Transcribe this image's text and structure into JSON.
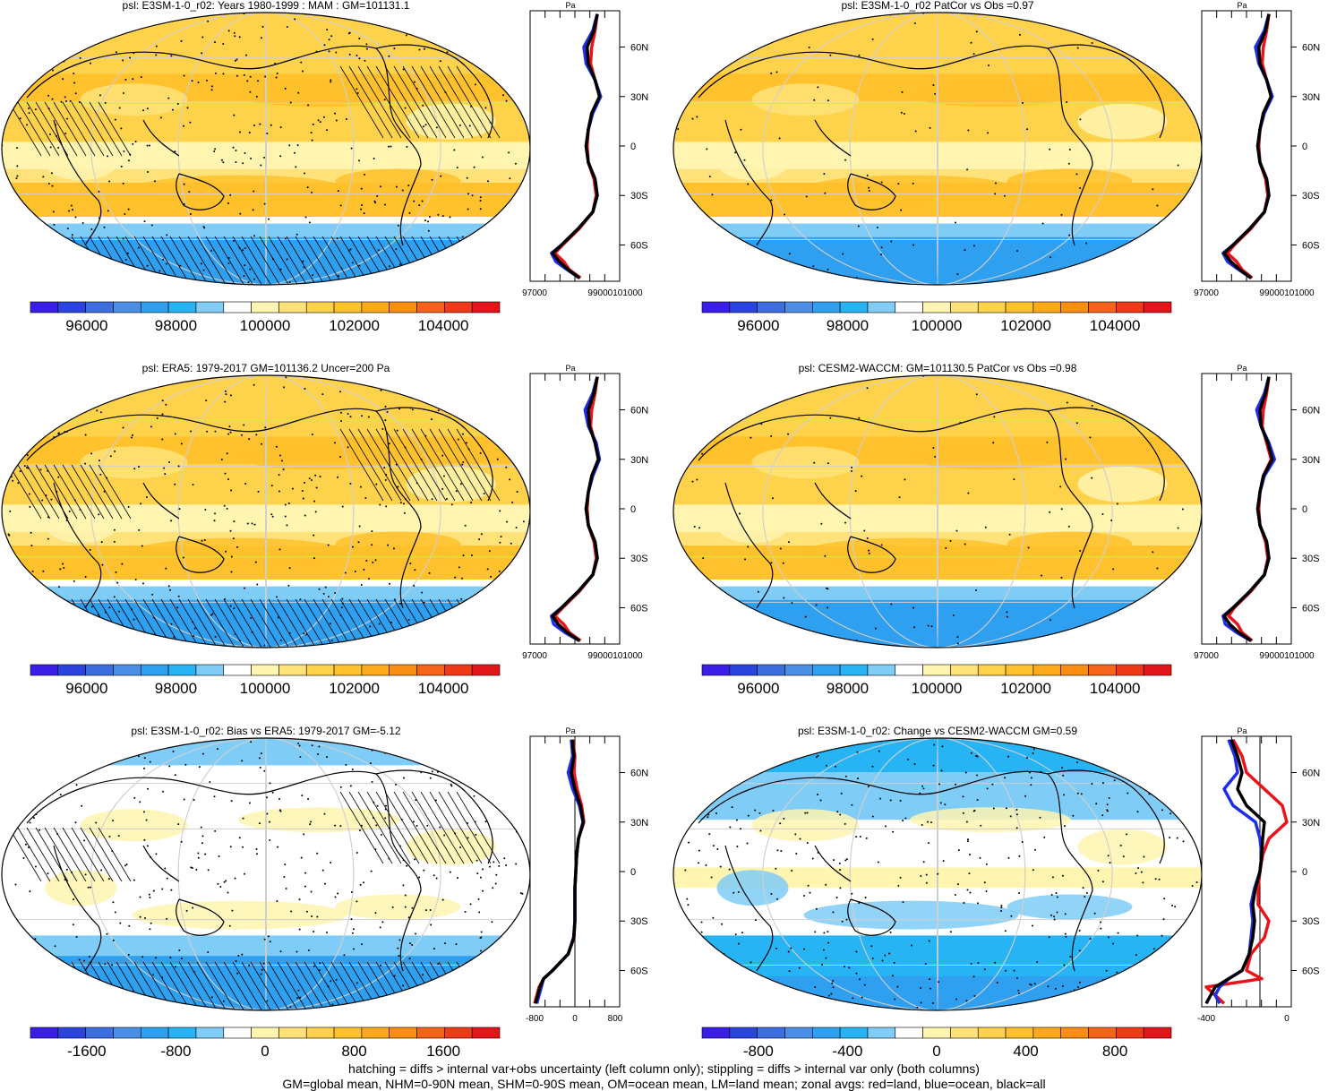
{
  "palettes": {
    "abs": [
      "#3a1ee8",
      "#2b44e0",
      "#3c6ee0",
      "#4a8ee6",
      "#2f9ff0",
      "#27b4f4",
      "#7fcdf6",
      "#ffffff",
      "#fff5b0",
      "#ffe37a",
      "#ffd24b",
      "#ffc12c",
      "#fcaa1a",
      "#fa8e12",
      "#f5641a",
      "#ef3a18",
      "#e2161a"
    ],
    "bias": [
      "#3a1ee8",
      "#2b44e0",
      "#3c6ee0",
      "#4a8ee6",
      "#2f9ff0",
      "#27b4f4",
      "#7fcdf6",
      "#ffffff",
      "#fff5b0",
      "#ffe37a",
      "#ffd24b",
      "#ffc12c",
      "#fcaa1a",
      "#fa8e12",
      "#f5641a",
      "#ef3a18",
      "#e2161a"
    ]
  },
  "zonal_colors": {
    "land": "#e8141a",
    "ocean": "#1e2ee8",
    "all": "#000000"
  },
  "lat_labels": [
    "60N",
    "30N",
    "0",
    "30S",
    "60S"
  ],
  "panels": [
    {
      "title": "psl: E3SM-1-0_r02: Years 1980-1999 : MAM : GM=101131.1",
      "palette": "abs",
      "colorbar_labels": [
        "96000",
        "98000",
        "100000",
        "102000",
        "104000"
      ],
      "zonal_unit": "Pa",
      "zonal_tick_labels": [
        "97000",
        "99000101000"
      ],
      "chart_data": {
        "type": "line",
        "xlim": [
          96000,
          104000
        ],
        "series": [
          {
            "name": "land",
            "lat": [
              80,
              70,
              60,
              50,
              40,
              30,
              20,
              10,
              0,
              -10,
              -20,
              -30,
              -40,
              -50,
              -60,
              -65,
              -70,
              -75,
              -80
            ],
            "values": [
              102000,
              101800,
              101500,
              101400,
              101800,
              102200,
              101500,
              101200,
              101100,
              101200,
              101700,
              101900,
              101600,
              100400,
              98900,
              98200,
              99000,
              99500,
              100500
            ]
          },
          {
            "name": "ocean",
            "lat": [
              80,
              70,
              60,
              50,
              40,
              30,
              20,
              10,
              0,
              -10,
              -20,
              -30,
              -40,
              -50,
              -60,
              -65,
              -70,
              -75,
              -80
            ],
            "values": [
              102000,
              101600,
              100800,
              101000,
              101800,
              102300,
              101600,
              101200,
              101000,
              101200,
              101800,
              102000,
              101600,
              100300,
              98800,
              97900,
              98300,
              99300,
              100400
            ]
          },
          {
            "name": "all",
            "lat": [
              80,
              70,
              60,
              50,
              40,
              30,
              20,
              10,
              0,
              -10,
              -20,
              -30,
              -40,
              -50,
              -60,
              -65,
              -70,
              -75,
              -80
            ],
            "values": [
              102000,
              101700,
              101100,
              101200,
              101800,
              102200,
              101500,
              101200,
              101000,
              101200,
              101800,
              102000,
              101600,
              100300,
              98800,
              98000,
              98600,
              99400,
              100400
            ]
          }
        ]
      }
    },
    {
      "title": "psl: E3SM-1-0_r02 PatCor vs Obs =0.97",
      "palette": "abs",
      "colorbar_labels": [
        "96000",
        "98000",
        "100000",
        "102000",
        "104000"
      ],
      "zonal_unit": "Pa",
      "zonal_tick_labels": [
        "97000",
        "99000101000"
      ],
      "chart_data": {
        "type": "line",
        "xlim": [
          96000,
          104000
        ],
        "series": [
          {
            "name": "land",
            "lat": [
              80,
              70,
              60,
              50,
              40,
              30,
              20,
              10,
              0,
              -10,
              -20,
              -30,
              -40,
              -50,
              -60,
              -65,
              -70,
              -75,
              -80
            ],
            "values": [
              102000,
              101800,
              101500,
              101400,
              101800,
              102200,
              101500,
              101200,
              101100,
              101200,
              101700,
              101900,
              101600,
              100400,
              98900,
              98300,
              99100,
              99600,
              100500
            ]
          },
          {
            "name": "ocean",
            "lat": [
              80,
              70,
              60,
              50,
              40,
              30,
              20,
              10,
              0,
              -10,
              -20,
              -30,
              -40,
              -50,
              -60,
              -65,
              -70,
              -75,
              -80
            ],
            "values": [
              102000,
              101600,
              100800,
              101100,
              101800,
              102300,
              101600,
              101200,
              101000,
              101200,
              101800,
              102000,
              101600,
              100300,
              98800,
              97900,
              98300,
              99300,
              100400
            ]
          },
          {
            "name": "all",
            "lat": [
              80,
              70,
              60,
              50,
              40,
              30,
              20,
              10,
              0,
              -10,
              -20,
              -30,
              -40,
              -50,
              -60,
              -65,
              -70,
              -75,
              -80
            ],
            "values": [
              102000,
              101700,
              101100,
              101200,
              101800,
              102200,
              101500,
              101200,
              101000,
              101200,
              101800,
              102000,
              101600,
              100300,
              98800,
              98000,
              98600,
              99400,
              100400
            ]
          }
        ]
      }
    },
    {
      "title": "psl: ERA5: 1979-2017 GM=101136.2 Uncer=200 Pa",
      "palette": "abs",
      "colorbar_labels": [
        "96000",
        "98000",
        "100000",
        "102000",
        "104000"
      ],
      "zonal_unit": "Pa",
      "zonal_tick_labels": [
        "97000",
        "99000101000"
      ],
      "chart_data": {
        "type": "line",
        "xlim": [
          96000,
          104000
        ],
        "series": [
          {
            "name": "land",
            "lat": [
              80,
              70,
              60,
              50,
              40,
              30,
              20,
              10,
              0,
              -10,
              -20,
              -30,
              -40,
              -50,
              -60,
              -65,
              -70,
              -75,
              -80
            ],
            "values": [
              102000,
              101800,
              101500,
              101400,
              101800,
              102100,
              101500,
              101200,
              101100,
              101200,
              101700,
              101900,
              101600,
              100400,
              98900,
              98200,
              99000,
              99500,
              100500
            ]
          },
          {
            "name": "ocean",
            "lat": [
              80,
              70,
              60,
              50,
              40,
              30,
              20,
              10,
              0,
              -10,
              -20,
              -30,
              -40,
              -50,
              -60,
              -65,
              -70,
              -75,
              -80
            ],
            "values": [
              102000,
              101600,
              100900,
              101200,
              101900,
              102200,
              101600,
              101200,
              101000,
              101200,
              101800,
              102000,
              101600,
              100300,
              98800,
              97900,
              98100,
              99100,
              100400
            ]
          },
          {
            "name": "all",
            "lat": [
              80,
              70,
              60,
              50,
              40,
              30,
              20,
              10,
              0,
              -10,
              -20,
              -30,
              -40,
              -50,
              -60,
              -65,
              -70,
              -75,
              -80
            ],
            "values": [
              102000,
              101700,
              101200,
              101300,
              101800,
              102100,
              101500,
              101200,
              101000,
              101200,
              101800,
              102000,
              101600,
              100300,
              98800,
              98000,
              98500,
              99300,
              100400
            ]
          }
        ]
      }
    },
    {
      "title": "psl: CESM2-WACCM: GM=101130.5 PatCor vs Obs =0.98",
      "palette": "abs",
      "colorbar_labels": [
        "96000",
        "98000",
        "100000",
        "102000",
        "104000"
      ],
      "zonal_unit": "Pa",
      "zonal_tick_labels": [
        "97000",
        "99000101000"
      ],
      "chart_data": {
        "type": "line",
        "xlim": [
          96000,
          104000
        ],
        "series": [
          {
            "name": "land",
            "lat": [
              80,
              70,
              60,
              50,
              40,
              30,
              20,
              10,
              0,
              -10,
              -20,
              -30,
              -40,
              -50,
              -60,
              -65,
              -70,
              -75,
              -80
            ],
            "values": [
              102000,
              101800,
              101500,
              101400,
              101800,
              102200,
              101500,
              101200,
              101100,
              101200,
              101700,
              101900,
              101600,
              100400,
              98900,
              98400,
              99200,
              99600,
              100500
            ]
          },
          {
            "name": "ocean",
            "lat": [
              80,
              70,
              60,
              50,
              40,
              30,
              20,
              10,
              0,
              -10,
              -20,
              -30,
              -40,
              -50,
              -60,
              -65,
              -70,
              -75,
              -80
            ],
            "values": [
              102000,
              101600,
              100900,
              101300,
              102000,
              102500,
              101600,
              101200,
              101000,
              101200,
              101800,
              102000,
              101600,
              100300,
              98800,
              97900,
              98100,
              99100,
              100400
            ]
          },
          {
            "name": "all",
            "lat": [
              80,
              70,
              60,
              50,
              40,
              30,
              20,
              10,
              0,
              -10,
              -20,
              -30,
              -40,
              -50,
              -60,
              -65,
              -70,
              -75,
              -80
            ],
            "values": [
              102000,
              101700,
              101200,
              101300,
              101900,
              102300,
              101500,
              101200,
              101000,
              101200,
              101800,
              102000,
              101600,
              100300,
              98800,
              98000,
              98500,
              99300,
              100400
            ]
          }
        ]
      }
    },
    {
      "title": "psl: E3SM-1-0_r02: Bias vs ERA5: 1979-2017 GM=-5.12",
      "palette": "bias",
      "colorbar_labels": [
        "-1600",
        "-800",
        "0",
        "800",
        "1600"
      ],
      "zonal_unit": "Pa",
      "zonal_tick_labels": [
        "-800",
        "0",
        "800"
      ],
      "chart_data": {
        "type": "line",
        "xlim": [
          -1000,
          1000
        ],
        "series": [
          {
            "name": "land",
            "lat": [
              80,
              70,
              60,
              50,
              40,
              30,
              20,
              10,
              0,
              -10,
              -20,
              -30,
              -40,
              -50,
              -60,
              -65,
              -70,
              -75,
              -80
            ],
            "values": [
              -50,
              0,
              -20,
              50,
              150,
              200,
              80,
              40,
              20,
              0,
              0,
              0,
              -20,
              -150,
              -500,
              -700,
              -800,
              -850,
              -900
            ]
          },
          {
            "name": "ocean",
            "lat": [
              80,
              70,
              60,
              50,
              40,
              30,
              20,
              10,
              0,
              -10,
              -20,
              -30,
              -40,
              -50,
              -60,
              -65,
              -70,
              -75,
              -80
            ],
            "values": [
              -80,
              -50,
              -150,
              -50,
              100,
              180,
              80,
              40,
              20,
              0,
              0,
              0,
              -30,
              -150,
              -500,
              -700,
              -750,
              -800,
              -850
            ]
          },
          {
            "name": "all",
            "lat": [
              80,
              70,
              60,
              50,
              40,
              30,
              20,
              10,
              0,
              -10,
              -20,
              -30,
              -40,
              -50,
              -60,
              -65,
              -70,
              -75,
              -80
            ],
            "values": [
              -60,
              -20,
              -80,
              0,
              120,
              190,
              80,
              40,
              20,
              0,
              0,
              0,
              -25,
              -150,
              -500,
              -700,
              -780,
              -830,
              -880
            ]
          }
        ]
      }
    },
    {
      "title": "psl: E3SM-1-0_r02: Change vs CESM2-WACCM GM=0.59",
      "palette": "bias",
      "colorbar_labels": [
        "-800",
        "-400",
        "0",
        "400",
        "800"
      ],
      "zonal_unit": "Pa",
      "zonal_tick_labels": [
        "-400",
        "0"
      ],
      "chart_data": {
        "type": "line",
        "xlim": [
          -650,
          350
        ],
        "series": [
          {
            "name": "land",
            "lat": [
              80,
              70,
              60,
              50,
              40,
              30,
              20,
              10,
              0,
              -10,
              -20,
              -30,
              -40,
              -50,
              -60,
              -65,
              -70,
              -75,
              -80
            ],
            "values": [
              -300,
              -200,
              -150,
              50,
              250,
              300,
              100,
              30,
              0,
              -20,
              -20,
              100,
              50,
              -100,
              -150,
              20,
              -600,
              -500,
              -400
            ]
          },
          {
            "name": "ocean",
            "lat": [
              80,
              70,
              60,
              50,
              40,
              30,
              20,
              10,
              0,
              -10,
              -20,
              -30,
              -40,
              -50,
              -60,
              -65,
              -70,
              -75,
              -80
            ],
            "values": [
              -350,
              -280,
              -250,
              -400,
              -300,
              -50,
              0,
              20,
              0,
              -60,
              -100,
              -80,
              -100,
              -120,
              -200,
              -350,
              -450,
              -500,
              -450
            ]
          },
          {
            "name": "all",
            "lat": [
              80,
              70,
              60,
              50,
              40,
              30,
              20,
              10,
              0,
              -10,
              -20,
              -30,
              -40,
              -50,
              -60,
              -65,
              -70,
              -75,
              -80
            ],
            "values": [
              -320,
              -250,
              -200,
              -250,
              -150,
              50,
              30,
              20,
              0,
              -50,
              -80,
              -60,
              -80,
              -120,
              -200,
              -350,
              -500,
              -550,
              -600
            ]
          }
        ]
      }
    }
  ],
  "footnotes": [
    "hatching = diffs > internal var+obs uncertainty (left column only); stippling = diffs > internal var only (both columns)",
    "GM=global mean, NHM=0-90N mean, SHM=0-90S mean, OM=ocean mean, LM=land mean; zonal avgs: red=land, blue=ocean, black=all"
  ]
}
